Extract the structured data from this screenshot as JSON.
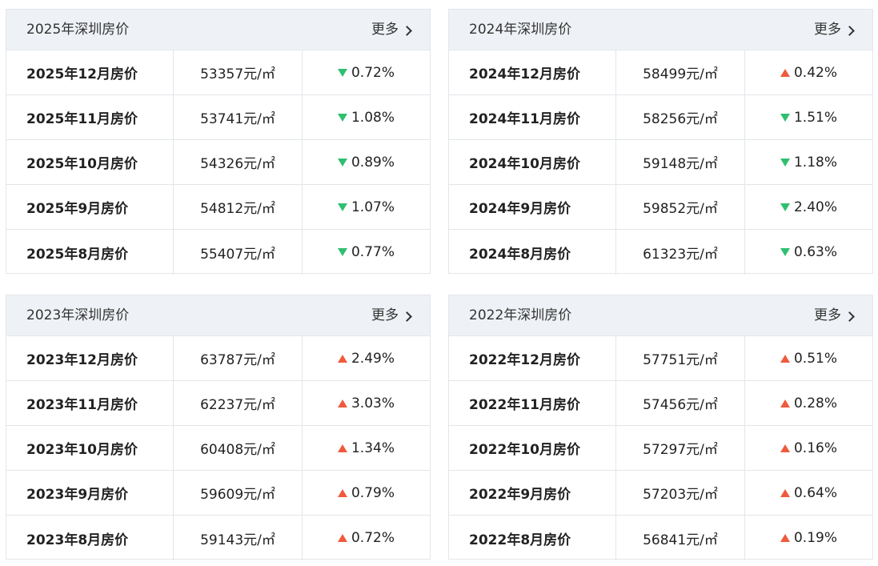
{
  "colors": {
    "down": "#2fbf71",
    "up": "#f05a3c",
    "header_bg": "#eef1f5",
    "border": "#e3e6ea"
  },
  "panels": [
    {
      "title": "2025年深圳房价",
      "more_label": "更多",
      "rows": [
        {
          "month": "2025年12月房价",
          "price": "53357元/㎡",
          "direction": "down",
          "change": "0.72%"
        },
        {
          "month": "2025年11月房价",
          "price": "53741元/㎡",
          "direction": "down",
          "change": "1.08%"
        },
        {
          "month": "2025年10月房价",
          "price": "54326元/㎡",
          "direction": "down",
          "change": "0.89%"
        },
        {
          "month": "2025年9月房价",
          "price": "54812元/㎡",
          "direction": "down",
          "change": "1.07%"
        },
        {
          "month": "2025年8月房价",
          "price": "55407元/㎡",
          "direction": "down",
          "change": "0.77%"
        }
      ]
    },
    {
      "title": "2024年深圳房价",
      "more_label": "更多",
      "rows": [
        {
          "month": "2024年12月房价",
          "price": "58499元/㎡",
          "direction": "up",
          "change": "0.42%"
        },
        {
          "month": "2024年11月房价",
          "price": "58256元/㎡",
          "direction": "down",
          "change": "1.51%"
        },
        {
          "month": "2024年10月房价",
          "price": "59148元/㎡",
          "direction": "down",
          "change": "1.18%"
        },
        {
          "month": "2024年9月房价",
          "price": "59852元/㎡",
          "direction": "down",
          "change": "2.40%"
        },
        {
          "month": "2024年8月房价",
          "price": "61323元/㎡",
          "direction": "down",
          "change": "0.63%"
        }
      ]
    },
    {
      "title": "2023年深圳房价",
      "more_label": "更多",
      "rows": [
        {
          "month": "2023年12月房价",
          "price": "63787元/㎡",
          "direction": "up",
          "change": "2.49%"
        },
        {
          "month": "2023年11月房价",
          "price": "62237元/㎡",
          "direction": "up",
          "change": "3.03%"
        },
        {
          "month": "2023年10月房价",
          "price": "60408元/㎡",
          "direction": "up",
          "change": "1.34%"
        },
        {
          "month": "2023年9月房价",
          "price": "59609元/㎡",
          "direction": "up",
          "change": "0.79%"
        },
        {
          "month": "2023年8月房价",
          "price": "59143元/㎡",
          "direction": "up",
          "change": "0.72%"
        }
      ]
    },
    {
      "title": "2022年深圳房价",
      "more_label": "更多",
      "rows": [
        {
          "month": "2022年12月房价",
          "price": "57751元/㎡",
          "direction": "up",
          "change": "0.51%"
        },
        {
          "month": "2022年11月房价",
          "price": "57456元/㎡",
          "direction": "up",
          "change": "0.28%"
        },
        {
          "month": "2022年10月房价",
          "price": "57297元/㎡",
          "direction": "up",
          "change": "0.16%"
        },
        {
          "month": "2022年9月房价",
          "price": "57203元/㎡",
          "direction": "up",
          "change": "0.64%"
        },
        {
          "month": "2022年8月房价",
          "price": "56841元/㎡",
          "direction": "up",
          "change": "0.19%"
        }
      ]
    }
  ]
}
